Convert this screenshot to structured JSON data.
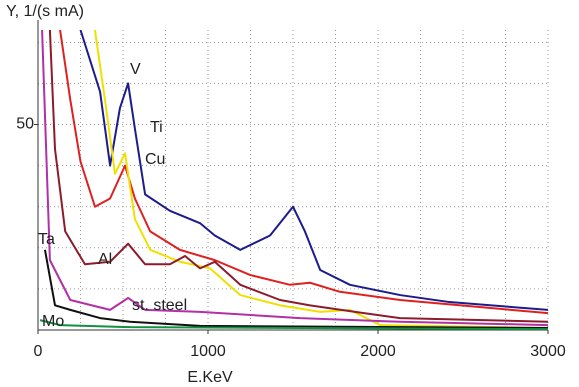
{
  "chart_data": {
    "type": "line",
    "y_label": "Y, 1/(s mA)",
    "x_label": "E.KeV",
    "xlim": [
      0,
      3000
    ],
    "ylim": [
      0,
      73
    ],
    "xticks": [
      0,
      1000,
      2000,
      3000
    ],
    "yticks": [
      50
    ],
    "xgrid": [
      250,
      500,
      750,
      1000,
      1250,
      1500,
      1750,
      2000,
      2250,
      2500,
      2750,
      3000
    ],
    "ygrid": [
      10,
      20,
      30,
      40,
      50,
      60,
      70
    ],
    "grid": true,
    "series": [
      {
        "name": "V",
        "color": "#1c1c8c",
        "x": [
          250,
          365,
          424,
          482,
          530,
          570,
          630,
          776,
          953,
          1040,
          1190,
          1365,
          1500,
          1570,
          1660,
          1835,
          2130,
          2420,
          3000
        ],
        "values": [
          73,
          58,
          40,
          54,
          60,
          49,
          33,
          29,
          26,
          23,
          19.5,
          23,
          30,
          24,
          14.6,
          11,
          8.5,
          6.8,
          4.9
        ]
      },
      {
        "name": "Ti",
        "color": "#e02020",
        "x": [
          130,
          190,
          250,
          335,
          424,
          512,
          570,
          660,
          835,
          1040,
          1247,
          1482,
          1600,
          1776,
          2130,
          3000
        ],
        "values": [
          73,
          56,
          41,
          30,
          32,
          40,
          32,
          24,
          19.5,
          17,
          13.4,
          11,
          11.5,
          9.3,
          7.3,
          4.1
        ]
      },
      {
        "name": "Cu",
        "color": "#f0e000",
        "x": [
          335,
          394,
          453,
          512,
          570,
          660,
          835,
          1012,
          1190,
          1424,
          1660,
          1835,
          2012,
          3000
        ],
        "values": [
          73,
          56,
          38,
          43,
          27,
          19.5,
          16.6,
          15,
          8.5,
          6,
          4.4,
          4.9,
          1.2,
          0.5
        ]
      },
      {
        "name": "Al",
        "color": "#8c1c2c",
        "x": [
          70,
          100,
          160,
          276,
          424,
          530,
          630,
          776,
          865,
          953,
          1040,
          1190,
          1424,
          1600,
          1865,
          2130,
          3000
        ],
        "values": [
          73,
          44,
          24,
          16,
          16.6,
          21,
          16,
          16,
          18,
          15,
          16.6,
          11,
          7.3,
          6,
          4.4,
          2.9,
          2
        ]
      },
      {
        "name": "st. steel",
        "color": "#b030a8",
        "x": [
          24,
          70,
          190,
          424,
          530,
          630,
          953,
          1541,
          2130,
          3000
        ],
        "values": [
          73,
          17,
          7.3,
          4.9,
          7.8,
          4.9,
          4.4,
          2.9,
          2,
          1.2
        ]
      },
      {
        "name": "Ta",
        "color": "#101010",
        "x": [
          41,
          100,
          190,
          365,
          541,
          953,
          3000
        ],
        "values": [
          19.5,
          6,
          4.9,
          2.9,
          2,
          1,
          0.5
        ]
      },
      {
        "name": "Mo",
        "color": "#109040",
        "x": [
          12,
          130,
          541,
          3000
        ],
        "values": [
          2.4,
          1.2,
          0.7,
          0.2
        ]
      }
    ]
  }
}
